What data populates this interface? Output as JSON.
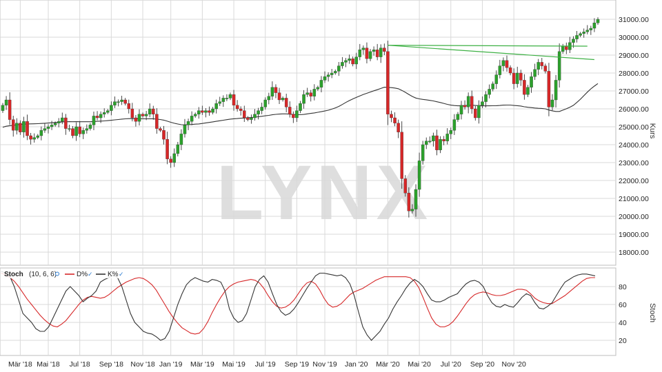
{
  "watermark": "LYNX",
  "price_axis_label": "Kurs",
  "osc_axis_label": "Stoch",
  "osc_legend": {
    "indicator": "Stoch",
    "params": "(10, 6, 6)",
    "d_label": "D%",
    "k_label": "K%"
  },
  "colors": {
    "up": "#2ca02c",
    "down": "#d62728",
    "sma": "#333333",
    "trend": "#3cb043",
    "stoch_d": "#d62728",
    "stoch_k": "#333333",
    "grid": "#d9d9d9"
  },
  "chart_data": [
    {
      "type": "candlestick",
      "title": "",
      "ylabel": "Kurs",
      "ylim": [
        17000,
        31500
      ],
      "y_ticks": [
        18000,
        19000,
        20000,
        21000,
        22000,
        23000,
        24000,
        25000,
        26000,
        27000,
        28000,
        29000,
        30000,
        31000
      ],
      "y_tick_labels": [
        "18000.00",
        "19000.00",
        "20000.00",
        "21000.00",
        "22000.00",
        "23000.00",
        "24000.00",
        "25000.00",
        "26000.00",
        "27000.00",
        "28000.00",
        "29000.00",
        "30000.00",
        "31000.00"
      ],
      "x_tick_labels": [
        "Mär '18",
        "Mai '18",
        "Jul '18",
        "Sep '18",
        "Nov '18",
        "Jan '19",
        "Mär '19",
        "Mai '19",
        "Jul '19",
        "Sep '19",
        "Nov '19",
        "Jan '20",
        "Mär '20",
        "Mai '20",
        "Jul '20",
        "Sep '20",
        "Nov '20"
      ],
      "x_tick_index": [
        5,
        13,
        22,
        31,
        40,
        48,
        57,
        66,
        75,
        84,
        92,
        101,
        110,
        119,
        128,
        137,
        146
      ],
      "close": [
        26200,
        26500,
        25400,
        24800,
        25200,
        24700,
        25300,
        24500,
        24300,
        24400,
        24500,
        24800,
        24900,
        25000,
        25100,
        25200,
        25300,
        25500,
        24900,
        24900,
        24500,
        25000,
        24600,
        24800,
        24900,
        25100,
        25600,
        25500,
        25700,
        25800,
        25900,
        26200,
        26400,
        26400,
        26500,
        26300,
        26000,
        25500,
        25300,
        25700,
        25600,
        25700,
        26000,
        25700,
        24900,
        24800,
        24300,
        23200,
        23000,
        23500,
        24000,
        24600,
        25100,
        25300,
        25600,
        25700,
        25900,
        25800,
        25900,
        25800,
        26000,
        26300,
        26400,
        26600,
        26600,
        26800,
        26200,
        26000,
        25900,
        25500,
        25400,
        25500,
        25700,
        25900,
        26100,
        26500,
        26700,
        27200,
        26900,
        26500,
        26600,
        26100,
        25700,
        25500,
        25900,
        26300,
        26800,
        26900,
        26700,
        27100,
        27200,
        27600,
        27800,
        27900,
        28000,
        28100,
        28400,
        28600,
        28700,
        28800,
        28500,
        28900,
        29300,
        29400,
        28800,
        29200,
        29300,
        28900,
        29400,
        29200,
        25700,
        25500,
        25200,
        24700,
        22100,
        21300,
        20300,
        20400,
        21500,
        23100,
        24000,
        24200,
        24200,
        24500,
        23700,
        24300,
        24200,
        24600,
        24800,
        25400,
        25700,
        26200,
        26100,
        26700,
        26000,
        25500,
        26200,
        26400,
        26800,
        27100,
        27400,
        27900,
        28400,
        28700,
        28300,
        28000,
        27400,
        28000,
        27600,
        26800,
        27200,
        27800,
        28200,
        28600,
        28400,
        28100,
        26100,
        26500,
        27600,
        29200,
        29500,
        29300,
        29700,
        29900,
        30100,
        30200,
        30300,
        30400,
        30500,
        30800,
        31000
      ],
      "sma_label": "",
      "sma_period": 50,
      "trendlines": [
        {
          "from": [
            110,
            29550
          ],
          "to": [
            167,
            29500
          ]
        },
        {
          "from": [
            110,
            29550
          ],
          "to": [
            169,
            28750
          ]
        }
      ]
    },
    {
      "type": "line",
      "title": "",
      "ylabel": "Stoch",
      "ylim": [
        0,
        100
      ],
      "y_ticks": [
        20,
        40,
        60,
        80
      ],
      "y_tick_labels": [
        "20",
        "40",
        "60",
        "80"
      ],
      "series": [
        {
          "name": "D%",
          "values": [
            95,
            93,
            90,
            86,
            80,
            73,
            66,
            60,
            54,
            48,
            43,
            39,
            36,
            35,
            38,
            42,
            48,
            54,
            60,
            65,
            68,
            69,
            68,
            67,
            68,
            71,
            75,
            79,
            82,
            85,
            87,
            89,
            90,
            89,
            86,
            82,
            76,
            68,
            60,
            52,
            45,
            39,
            34,
            31,
            28,
            27,
            28,
            33,
            41,
            51,
            60,
            68,
            75,
            80,
            83,
            85,
            86,
            87,
            88,
            87,
            84,
            78,
            70,
            63,
            58,
            56,
            57,
            60,
            65,
            72,
            79,
            84,
            86,
            83,
            76,
            67,
            60,
            57,
            58,
            61,
            66,
            71,
            74,
            76,
            78,
            81,
            84,
            87,
            89,
            91,
            91,
            91,
            91,
            91,
            91,
            90,
            86,
            79,
            68,
            56,
            45,
            38,
            35,
            35,
            37,
            41,
            47,
            54,
            61,
            67,
            71,
            73,
            74,
            73,
            71,
            70,
            70,
            71,
            73,
            75,
            77,
            77,
            76,
            72,
            67,
            64,
            62,
            61,
            61,
            64,
            67,
            70,
            74,
            78,
            82,
            86,
            89,
            90,
            90
          ]
        },
        {
          "name": "K%",
          "values": [
            97,
            95,
            91,
            80,
            65,
            50,
            45,
            40,
            33,
            30,
            30,
            35,
            45,
            55,
            65,
            75,
            80,
            75,
            70,
            63,
            67,
            70,
            75,
            85,
            88,
            90,
            93,
            90,
            80,
            65,
            50,
            40,
            35,
            30,
            28,
            27,
            24,
            20,
            22,
            30,
            45,
            60,
            72,
            82,
            87,
            90,
            88,
            86,
            85,
            88,
            87,
            85,
            75,
            55,
            45,
            40,
            42,
            50,
            65,
            80,
            88,
            92,
            85,
            72,
            60,
            52,
            48,
            50,
            55,
            62,
            70,
            78,
            85,
            92,
            95,
            95,
            94,
            93,
            92,
            93,
            90,
            83,
            70,
            52,
            35,
            26,
            20,
            25,
            30,
            38,
            45,
            55,
            63,
            70,
            78,
            84,
            88,
            85,
            80,
            72,
            65,
            63,
            63,
            65,
            68,
            70,
            72,
            78,
            83,
            86,
            87,
            85,
            80,
            70,
            62,
            58,
            57,
            60,
            58,
            57,
            62,
            68,
            72,
            70,
            62,
            56,
            55,
            58,
            62,
            70,
            78,
            85,
            88,
            91,
            93,
            94,
            94,
            93,
            92
          ]
        }
      ]
    }
  ]
}
